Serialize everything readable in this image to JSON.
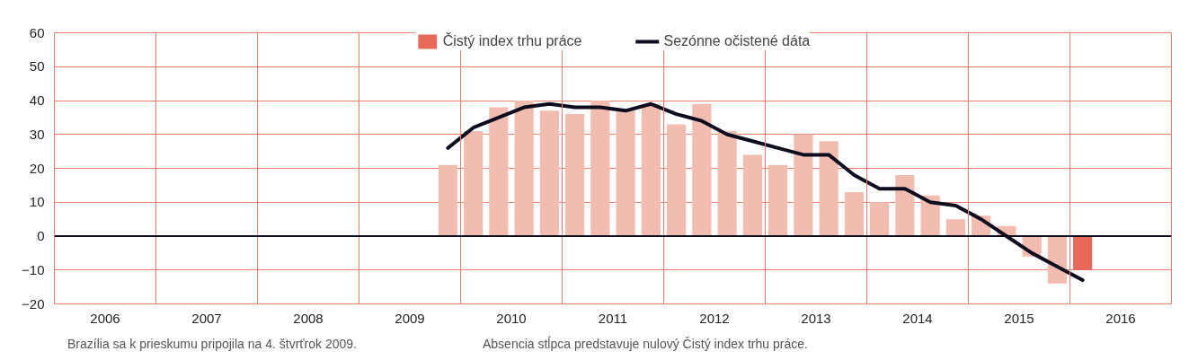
{
  "chart_data": {
    "type": "bar",
    "x": [
      2009.875,
      2010.125,
      2010.375,
      2010.625,
      2010.875,
      2011.125,
      2011.375,
      2011.625,
      2011.875,
      2012.125,
      2012.375,
      2012.625,
      2012.875,
      2013.125,
      2013.375,
      2013.625,
      2013.875,
      2014.125,
      2014.375,
      2014.625,
      2014.875,
      2015.125,
      2015.375,
      2015.625,
      2015.875,
      2016.125
    ],
    "series": [
      {
        "name": "Čistý index trhu práce",
        "color": "#e8695a",
        "colors": [
          "#f2bdb0",
          "#f2bdb0",
          "#f2bdb0",
          "#f2bdb0",
          "#f2bdb0",
          "#f2bdb0",
          "#f2bdb0",
          "#f2bdb0",
          "#f2bdb0",
          "#f2bdb0",
          "#f2bdb0",
          "#f2bdb0",
          "#f2bdb0",
          "#f2bdb0",
          "#f2bdb0",
          "#f2bdb0",
          "#f2bdb0",
          "#f2bdb0",
          "#f2bdb0",
          "#f2bdb0",
          "#f2bdb0",
          "#f2bdb0",
          "#f2bdb0",
          "#f2bdb0",
          "#f2bdb0",
          "#e8695a"
        ],
        "values": [
          21,
          31,
          38,
          40,
          37,
          36,
          40,
          37,
          39,
          33,
          39,
          31,
          24,
          21,
          30,
          28,
          13,
          10,
          18,
          12,
          5,
          6,
          3,
          -6,
          -14,
          -10
        ]
      },
      {
        "name": "Sezónne očistené dáta",
        "type": "line",
        "color": "#0d0d20",
        "values": [
          26,
          32,
          35,
          38,
          39,
          38,
          38,
          37,
          39,
          36,
          34,
          30,
          28,
          26,
          24,
          24,
          18,
          14,
          14,
          10,
          9,
          5,
          0,
          -5,
          -9,
          -13
        ]
      }
    ],
    "xlim": [
      2006,
      2017
    ],
    "xticks": [
      {
        "value": 2006.5,
        "label": "2006"
      },
      {
        "value": 2007.5,
        "label": "2007"
      },
      {
        "value": 2008.5,
        "label": "2008"
      },
      {
        "value": 2009.5,
        "label": "2009"
      },
      {
        "value": 2010.5,
        "label": "2010"
      },
      {
        "value": 2011.5,
        "label": "2011"
      },
      {
        "value": 2012.5,
        "label": "2012"
      },
      {
        "value": 2013.5,
        "label": "2013"
      },
      {
        "value": 2014.5,
        "label": "2014"
      },
      {
        "value": 2015.5,
        "label": "2015"
      },
      {
        "value": 2016.5,
        "label": "2016"
      }
    ],
    "ylim": [
      -20,
      60
    ],
    "yticks": [
      -20,
      -10,
      0,
      10,
      20,
      30,
      40,
      50,
      60
    ],
    "ref_lines": [
      {
        "axis": "y",
        "value": 0,
        "color": "#0d0d20"
      }
    ],
    "grid": true,
    "legend": "top",
    "annotations": [
      "Brazília sa k prieskumu pripojila na 4. štvrťrok 2009.",
      "Absencia stĺpca predstavuje nulový Čistý index trhu práce."
    ]
  }
}
